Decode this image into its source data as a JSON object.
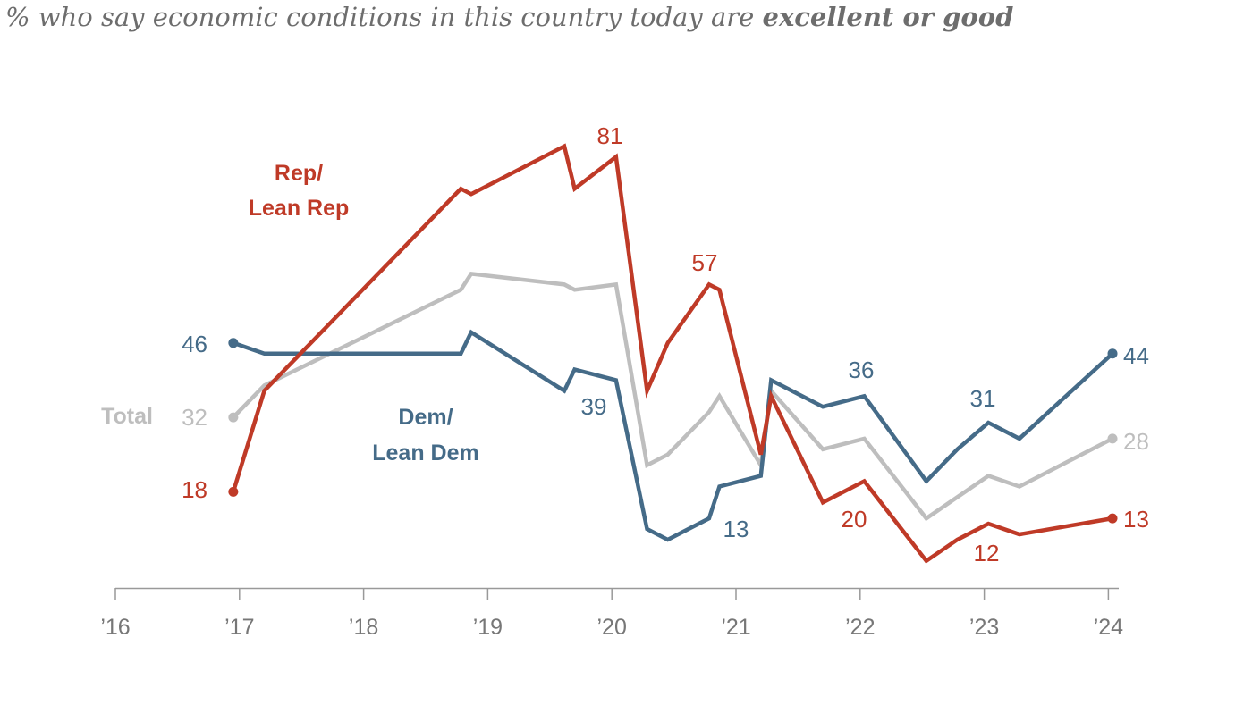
{
  "title": {
    "prefix": "% who say economic conditions in this country today are ",
    "emphasis": "excellent or good"
  },
  "chart_data": {
    "type": "line",
    "title": "% who say economic conditions in this country today are excellent or good",
    "xlabel": "",
    "ylabel": "",
    "x_ticks": [
      "’16",
      "’17",
      "’18",
      "’19",
      "’20",
      "’21",
      "’22",
      "’23",
      "’24"
    ],
    "xlim": [
      2016,
      2024.08
    ],
    "ylim": [
      0,
      90
    ],
    "grid": false,
    "legend": "inline labels",
    "x": [
      "2016-12",
      "2017-03",
      "2018-10",
      "2018-11",
      "2019-08",
      "2019-09",
      "2020-01",
      "2020-04",
      "2020-06",
      "2020-10",
      "2020-11",
      "2021-03",
      "2021-04",
      "2021-09",
      "2022-01",
      "2022-07",
      "2022-10",
      "2023-01",
      "2023-04",
      "2024-01"
    ],
    "series": [
      {
        "name": "Rep/ Lean Rep",
        "color": "#BF3A27",
        "values": [
          18,
          37,
          75,
          74,
          83,
          75,
          81,
          37,
          46,
          57,
          56,
          25,
          36,
          16,
          20,
          5,
          9,
          12,
          10,
          13
        ]
      },
      {
        "name": "Total",
        "color": "#BEBEBE",
        "values": [
          32,
          38,
          56,
          59,
          57,
          56,
          57,
          23,
          25,
          33,
          36,
          23,
          37,
          26,
          28,
          13,
          null,
          21,
          19,
          28
        ]
      },
      {
        "name": "Dem/ Lean Dem",
        "color": "#456B88",
        "values": [
          46,
          44,
          44,
          48,
          37,
          41,
          39,
          11,
          9,
          13,
          19,
          21,
          39,
          34,
          36,
          20,
          26,
          31,
          28,
          44
        ]
      }
    ],
    "data_labels": {
      "rep": [
        "18",
        "81",
        "57",
        "20",
        "12",
        "13"
      ],
      "total": [
        "32",
        "28"
      ],
      "dem": [
        "46",
        "39",
        "13",
        "36",
        "31",
        "44"
      ]
    }
  },
  "labels": {
    "rep_line1": "Rep/",
    "rep_line2": "Lean Rep",
    "dem_line1": "Dem/",
    "dem_line2": "Lean Dem",
    "total": "Total"
  }
}
